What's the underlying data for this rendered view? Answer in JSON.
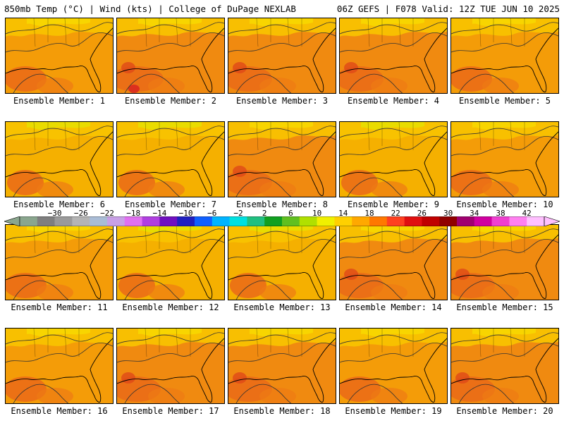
{
  "header": {
    "left": "850mb Temp (°C) | Wind (kts) | College of DuPage NEXLAB",
    "right": "06Z GEFS | F078 Valid: 12Z TUE JUN 10 2025"
  },
  "panels": [
    {
      "label": "Ensemble Member: 1",
      "tone": 0
    },
    {
      "label": "Ensemble Member: 2",
      "tone": 2
    },
    {
      "label": "Ensemble Member: 3",
      "tone": 1
    },
    {
      "label": "Ensemble Member: 4",
      "tone": 1
    },
    {
      "label": "Ensemble Member: 5",
      "tone": 0
    },
    {
      "label": "Ensemble Member: 6",
      "tone": -1
    },
    {
      "label": "Ensemble Member: 7",
      "tone": -1
    },
    {
      "label": "Ensemble Member: 8",
      "tone": 1
    },
    {
      "label": "Ensemble Member: 9",
      "tone": -1
    },
    {
      "label": "Ensemble Member: 10",
      "tone": 0
    },
    {
      "label": "Ensemble Member: 11",
      "tone": 0
    },
    {
      "label": "Ensemble Member: 12",
      "tone": -1
    },
    {
      "label": "Ensemble Member: 13",
      "tone": -1
    },
    {
      "label": "Ensemble Member: 14",
      "tone": 1
    },
    {
      "label": "Ensemble Member: 15",
      "tone": 1
    },
    {
      "label": "Ensemble Member: 16",
      "tone": 0
    },
    {
      "label": "Ensemble Member: 17",
      "tone": 1
    },
    {
      "label": "Ensemble Member: 18",
      "tone": 1
    },
    {
      "label": "Ensemble Member: 19",
      "tone": 0
    },
    {
      "label": "Ensemble Member: 20",
      "tone": 1
    }
  ],
  "colorbar": {
    "ticks": [
      "−30",
      "−26",
      "−22",
      "−18",
      "−14",
      "−10",
      "−6",
      "−2",
      "2",
      "6",
      "10",
      "14",
      "18",
      "22",
      "26",
      "30",
      "34",
      "38",
      "42"
    ],
    "colors": [
      "#8aa68e",
      "#7f7f7f",
      "#9a9a9a",
      "#b4b4b4",
      "#a9bcd6",
      "#c8a0e6",
      "#e070f0",
      "#b040e0",
      "#7010c0",
      "#2020c0",
      "#1060ff",
      "#00b4ff",
      "#00e0e0",
      "#20c080",
      "#10a020",
      "#60c020",
      "#b0e000",
      "#f0f000",
      "#ffd000",
      "#ffa800",
      "#ff7800",
      "#ff4020",
      "#e01010",
      "#c00000",
      "#900000",
      "#a00070",
      "#d000a0",
      "#f040d0",
      "#ff80f0",
      "#ffc0ff"
    ]
  }
}
